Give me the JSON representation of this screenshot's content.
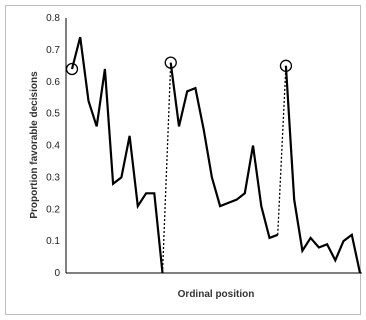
{
  "chart_data": {
    "type": "line",
    "title": "",
    "xlabel": "Ordinal position",
    "ylabel": "Proportion favorable decisions",
    "ylim": [
      0,
      0.8
    ],
    "yticks": [
      "0",
      "0.1",
      "0.2",
      "0.3",
      "0.4",
      "0.5",
      "0.6",
      "0.7",
      "0.8"
    ],
    "grid": false,
    "legend": "none",
    "series": [
      {
        "values": [
          0.64,
          0.74,
          0.54,
          0.46,
          0.64,
          0.28,
          0.3,
          0.43,
          0.21,
          0.25,
          0.25,
          0.0
        ]
      },
      {
        "values": [
          0.66,
          0.46,
          0.57,
          0.58,
          0.45,
          0.3,
          0.21,
          0.22,
          0.23,
          0.25,
          0.4,
          0.21,
          0.11,
          0.12
        ]
      },
      {
        "values": [
          0.65,
          0.23,
          0.07,
          0.11,
          0.08,
          0.09,
          0.04,
          0.1,
          0.12,
          0.0
        ]
      }
    ],
    "break_links": [
      {
        "from_value": 0.0,
        "to_value": 0.66
      },
      {
        "from_value": 0.12,
        "to_value": 0.65
      }
    ],
    "circled_points": [
      0.64,
      0.66,
      0.65
    ]
  }
}
